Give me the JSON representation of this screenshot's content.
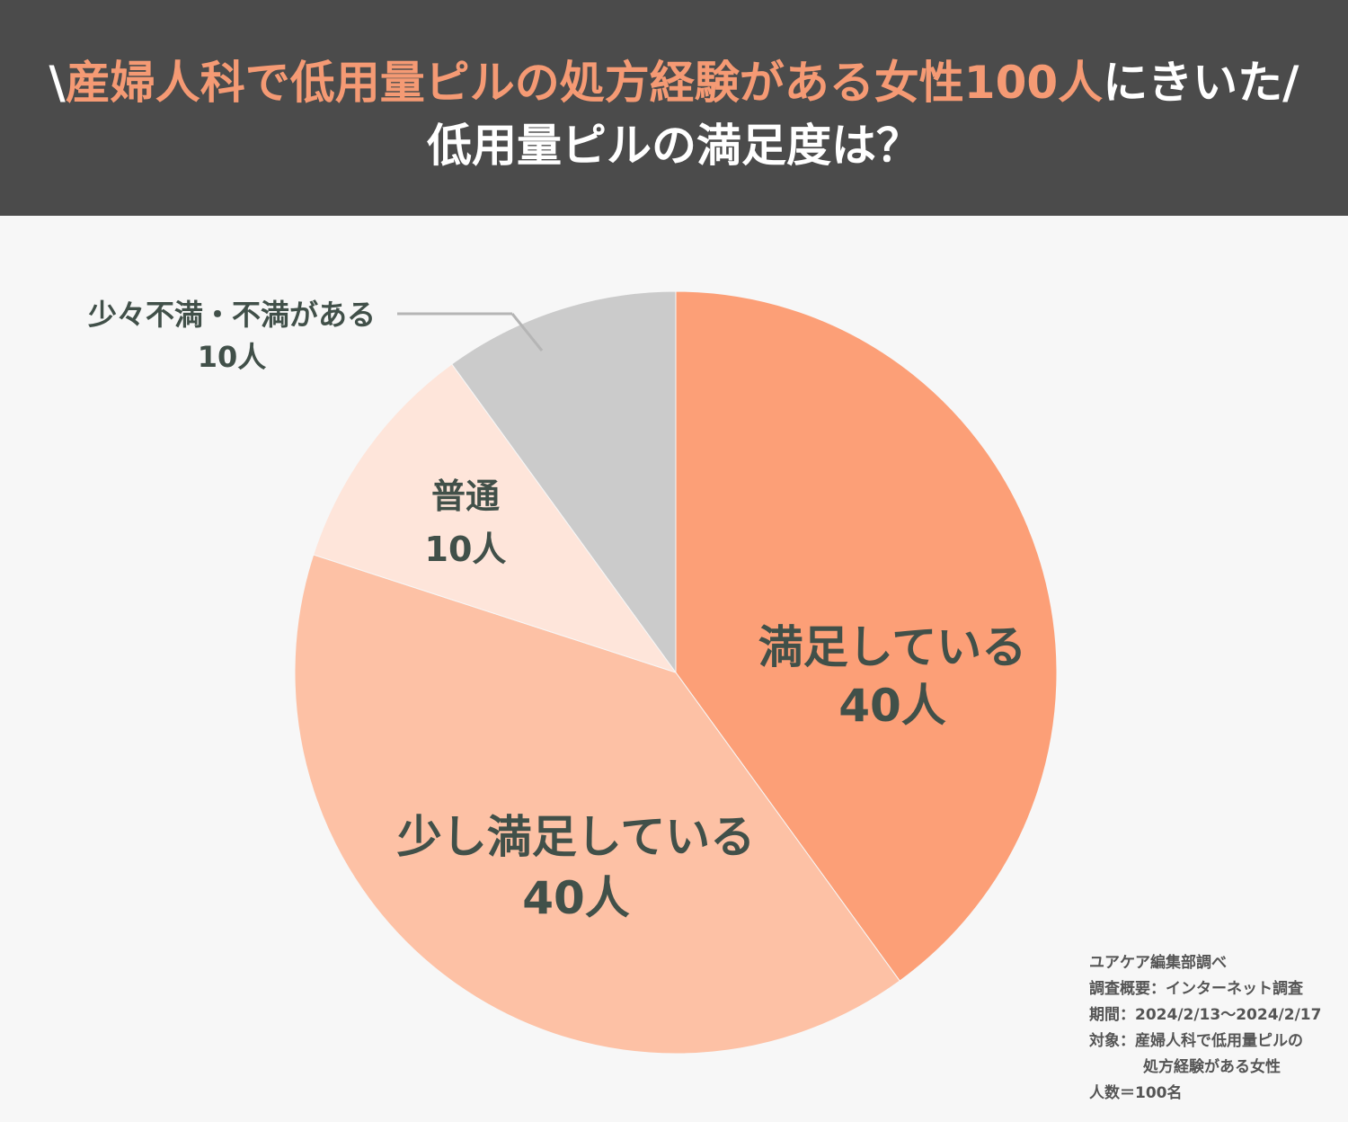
{
  "header": {
    "line1_open": "\\",
    "line1_highlight": "産婦人科で低用量ピルの処方経験がある女性100人",
    "line1_tail": "にきいた/",
    "line2": "低用量ピルの満足度は？"
  },
  "chart_data": {
    "type": "pie",
    "title": "低用量ピルの満足度は？",
    "slices": [
      {
        "name": "満足している",
        "value": 40,
        "value_label": "40人",
        "color": "#fc9f77"
      },
      {
        "name": "少し満足している",
        "value": 40,
        "value_label": "40人",
        "color": "#fdc1a5"
      },
      {
        "name": "普通",
        "value": 10,
        "value_label": "10人",
        "color": "#fee5da"
      },
      {
        "name": "少々不満・不満がある",
        "value": 10,
        "value_label": "10人",
        "color": "#cbcbcb"
      }
    ],
    "start": "12 o'clock",
    "direction": "clockwise",
    "label_color": "#415049"
  },
  "source": {
    "line1": "ユアケア編集部調べ",
    "line2": "調査概要：インターネット調査",
    "line3": "期間：2024/2/13〜2024/2/17",
    "line4": "対象：産婦人科で低用量ピルの",
    "line5": "処方経験がある女性",
    "line6": "人数＝100名"
  },
  "colors": {
    "header_bg": "#4b4b4b",
    "highlight": "#f59a74",
    "background": "#f7f7f7"
  }
}
